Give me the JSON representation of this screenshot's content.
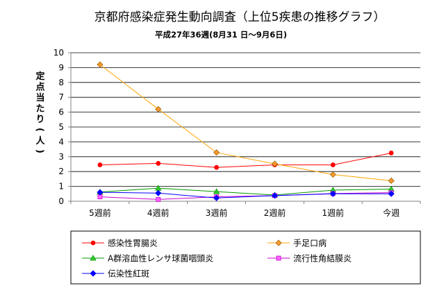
{
  "chart_data": {
    "type": "line",
    "title": "京都府感染症発生動向調査（上位5疾患の推移グラフ）",
    "subtitle": "平成27年36週(8月31 日～9月6日)",
    "ylabel": "定点当たり（人）",
    "xlabel": "",
    "ylim": [
      0,
      10
    ],
    "yticks": [
      "0",
      "1",
      "2",
      "3",
      "4",
      "5",
      "6",
      "7",
      "8",
      "9",
      "10"
    ],
    "grid": true,
    "legend_position": "bottom",
    "categories": [
      "5週前",
      "4週前",
      "3週前",
      "2週前",
      "1週前",
      "今週"
    ],
    "series": [
      {
        "name": "感染性胃腸炎",
        "color": "#ff0000",
        "marker": "circle",
        "marker_fill": "#ff0000",
        "values": [
          2.45,
          2.55,
          2.28,
          2.45,
          2.45,
          3.25
        ]
      },
      {
        "name": "手足口病",
        "color": "#ffa500",
        "marker": "diamond",
        "marker_fill": "#ff9933",
        "values": [
          9.2,
          6.2,
          3.28,
          2.52,
          1.8,
          1.38
        ]
      },
      {
        "name": "A群溶血性レンサ球菌咽頭炎",
        "color": "#009900",
        "marker": "triangle",
        "marker_fill": "#33cc33",
        "values": [
          0.62,
          0.88,
          0.65,
          0.42,
          0.75,
          0.82
        ]
      },
      {
        "name": "流行性角結膜炎",
        "color": "#cc00cc",
        "marker": "square",
        "marker_fill": "#ff66ff",
        "values": [
          0.3,
          0.12,
          0.3,
          0.38,
          0.52,
          0.58
        ]
      },
      {
        "name": "伝染性紅斑",
        "color": "#0000ff",
        "marker": "diamond",
        "marker_fill": "#0000ff",
        "values": [
          0.6,
          0.55,
          0.22,
          0.38,
          0.5,
          0.5
        ]
      }
    ]
  }
}
